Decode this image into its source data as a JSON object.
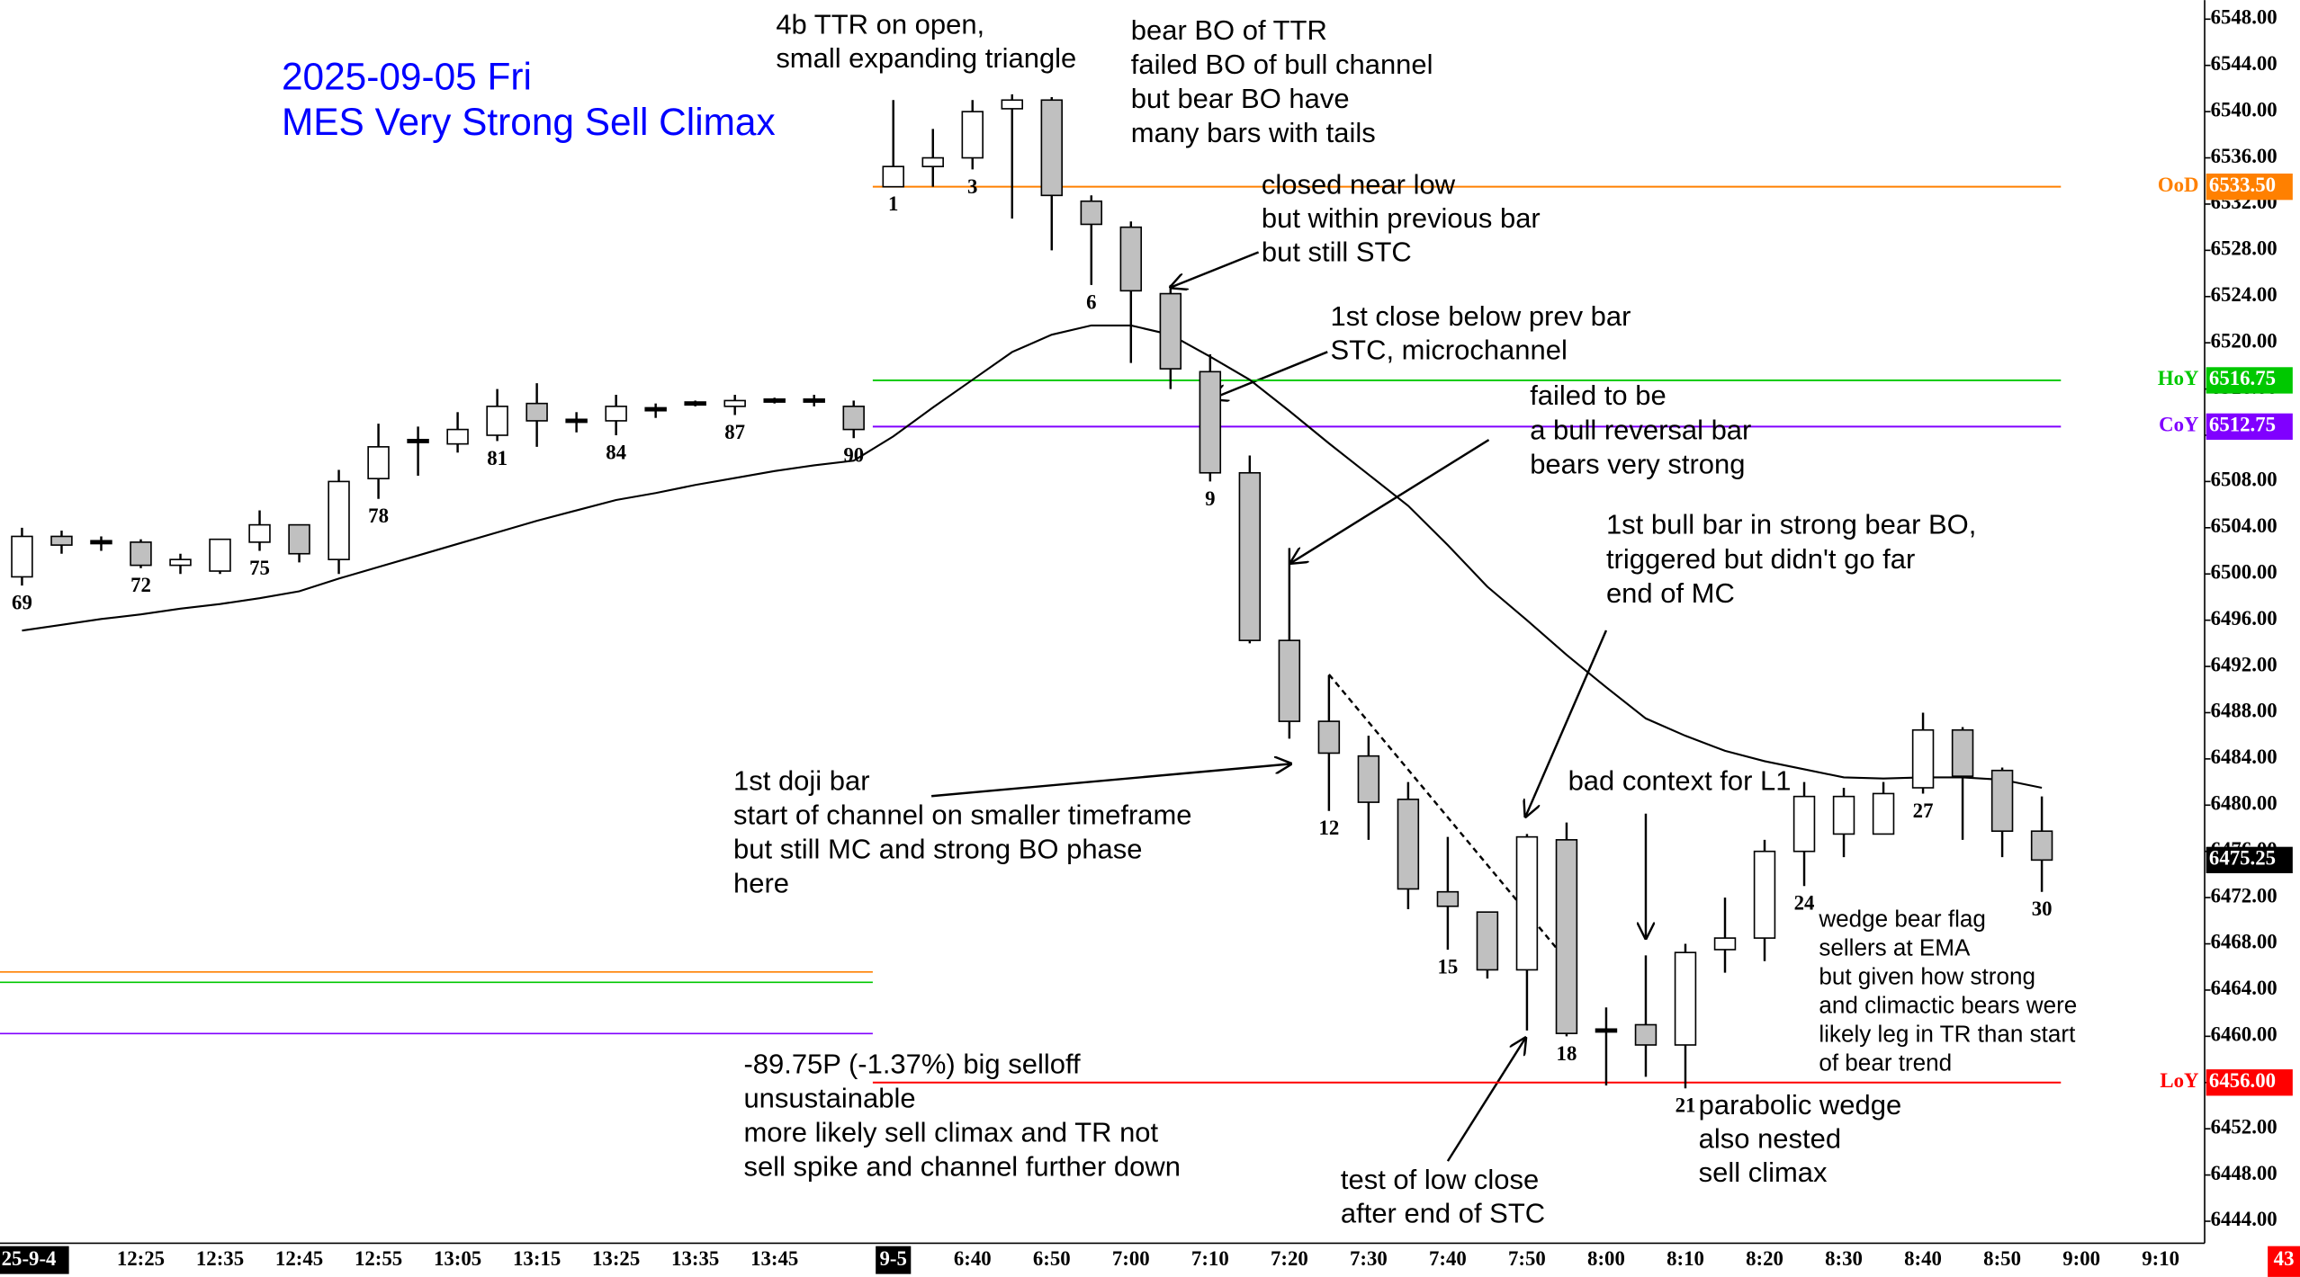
{
  "chart_data": {
    "type": "candlestick",
    "title": [
      "2025-09-05 Fri",
      "MES Very Strong Sell Climax"
    ],
    "categories": [
      "69",
      null,
      null,
      "72",
      null,
      null,
      "75",
      null,
      null,
      "78",
      null,
      null,
      "81",
      null,
      null,
      "84",
      null,
      null,
      "87",
      null,
      null,
      "90",
      "1",
      null,
      "3",
      null,
      null,
      "6",
      null,
      null,
      "9",
      null,
      null,
      "12",
      null,
      null,
      "15",
      null,
      null,
      "18",
      null,
      null,
      "21",
      null,
      null,
      "24",
      null,
      null,
      "27",
      null,
      null,
      "30",
      null,
      null,
      null
    ],
    "time_labels": [
      "25-9-4",
      null,
      null,
      "12:25",
      null,
      "12:35",
      null,
      "12:45",
      null,
      "12:55",
      null,
      "13:05",
      null,
      "13:15",
      null,
      "13:25",
      null,
      "13:35",
      null,
      "13:45",
      null,
      null,
      "9-5",
      null,
      "6:40",
      null,
      "6:50",
      null,
      "7:00",
      null,
      "7:10",
      null,
      "7:20",
      null,
      "7:30",
      null,
      "7:40",
      null,
      "7:50",
      null,
      "8:00",
      null,
      "8:10",
      null,
      "8:20",
      null,
      "8:30",
      null,
      "8:40",
      null,
      "8:50",
      null,
      "9:00",
      null,
      "9:10"
    ],
    "open": [
      6499.75,
      6503.25,
      6502.75,
      6502.75,
      6500.75,
      6500.25,
      6502.75,
      6504.25,
      6501.25,
      6508.25,
      6511.5,
      6511.25,
      6512,
      6514.75,
      6513.25,
      6513.25,
      6514.25,
      6514.75,
      6514.5,
      6515,
      6515,
      6514.5,
      6533.5,
      6535.25,
      6536,
      6540.25,
      6541,
      6532.25,
      6530,
      6524.25,
      6517.5,
      6508.75,
      6494.25,
      6487.25,
      6484.25,
      6480.5,
      6472.5,
      6470.75,
      6465.75,
      6477,
      6460.5,
      6461,
      6459.25,
      6467.5,
      6468.5,
      6476,
      6477.5,
      6477.5,
      6481.5,
      6486.5,
      6483,
      6477.75,
      null,
      null,
      null
    ],
    "high": [
      6504,
      6503.75,
      6503.25,
      6503,
      6501.75,
      6503,
      6505.5,
      6504.25,
      6509,
      6513,
      6512.75,
      6514,
      6516,
      6516.5,
      6514,
      6515.5,
      6514.75,
      6515,
      6515.5,
      6515.25,
      6515.5,
      6515,
      6541,
      6538.5,
      6541,
      6541.5,
      6541.25,
      6532.75,
      6530.5,
      6525,
      6519,
      6510.25,
      6502.25,
      6491.25,
      6486,
      6482,
      6477.25,
      6470.75,
      6477.5,
      6478.5,
      6462.5,
      6467,
      6468,
      6472,
      6477,
      6482,
      6481.5,
      6482,
      6488,
      6486.75,
      6483.25,
      6480.75,
      null,
      null,
      null
    ],
    "low": [
      6499,
      6501.75,
      6502,
      6500.5,
      6500,
      6500,
      6502,
      6501,
      6500,
      6506.5,
      6508.5,
      6510.5,
      6511.5,
      6511,
      6512.25,
      6512,
      6513.5,
      6514.5,
      6513.75,
      6514.75,
      6514.5,
      6511.75,
      6533.5,
      6533.5,
      6535,
      6530.75,
      6528,
      6525,
      6518.25,
      6516,
      6508,
      6494,
      6485.75,
      6479.5,
      6477,
      6471,
      6467.5,
      6465,
      6460.5,
      6460,
      6455.75,
      6456.5,
      6455.5,
      6465.5,
      6466.5,
      6473,
      6475.5,
      6477.5,
      6481,
      6477,
      6475.5,
      6472.5,
      null,
      null,
      null
    ],
    "close": [
      6503.25,
      6502.5,
      6502.75,
      6500.75,
      6501.25,
      6503,
      6504.25,
      6501.75,
      6508,
      6511,
      6511.5,
      6512.5,
      6514.5,
      6513.25,
      6513.25,
      6514.5,
      6514.25,
      6514.75,
      6515,
      6515,
      6515,
      6512.5,
      6535.25,
      6536,
      6540,
      6541,
      6532.75,
      6530.25,
      6524.5,
      6517.75,
      6508.75,
      6494.25,
      6487.25,
      6484.5,
      6480.25,
      6472.75,
      6471.25,
      6465.75,
      6477.25,
      6460.25,
      6460.5,
      6459.25,
      6467.25,
      6468.5,
      6476,
      6480.75,
      6480.75,
      6481,
      6486.5,
      6482.5,
      6477.75,
      6475.25,
      null,
      null,
      null
    ],
    "ema": [
      6495.1,
      6495.6,
      6496.1,
      6496.5,
      6497.0,
      6497.4,
      6497.9,
      6498.5,
      6499.6,
      6500.6,
      6501.6,
      6502.6,
      6503.6,
      6504.6,
      6505.5,
      6506.4,
      6507.0,
      6507.7,
      6508.3,
      6508.9,
      6509.4,
      6509.8,
      6511.9,
      6514.4,
      6516.8,
      6519.2,
      6520.7,
      6521.5,
      6521.5,
      6520.7,
      6518.8,
      6516.8,
      6514.1,
      6511.3,
      6508.6,
      6505.9,
      6502.5,
      6498.9,
      6496.0,
      6493.0,
      6490.2,
      6487.5,
      6486.0,
      6484.7,
      6483.8,
      6483.1,
      6482.4,
      6482.3,
      6482.4,
      6482.4,
      6482.2,
      6481.5,
      null,
      null,
      null
    ],
    "bull_color": "#ffffff",
    "bear_color": "#c0c0c0",
    "ema_color": "#000000",
    "ylim": [
      6442.1,
      6549.65
    ],
    "yticks": [
      {
        "value": 6444,
        "label": "6444.00"
      },
      {
        "value": 6448,
        "label": "6448.00"
      },
      {
        "value": 6452,
        "label": "6452.00"
      },
      {
        "value": 6456,
        "label": "6456.00"
      },
      {
        "value": 6460,
        "label": "6460.00"
      },
      {
        "value": 6464,
        "label": "6464.00"
      },
      {
        "value": 6468,
        "label": "6468.00"
      },
      {
        "value": 6472,
        "label": "6472.00"
      },
      {
        "value": 6476,
        "label": "6476.00"
      },
      {
        "value": 6480,
        "label": "6480.00"
      },
      {
        "value": 6484,
        "label": "6484.00"
      },
      {
        "value": 6488,
        "label": "6488.00"
      },
      {
        "value": 6492,
        "label": "6492.00"
      },
      {
        "value": 6496,
        "label": "6496.00"
      },
      {
        "value": 6500,
        "label": "6500.00"
      },
      {
        "value": 6504,
        "label": "6504.00"
      },
      {
        "value": 6508,
        "label": "6508.00"
      },
      {
        "value": 6512,
        "label": "6512.00"
      },
      {
        "value": 6516,
        "label": "6516.00"
      },
      {
        "value": 6520,
        "label": "6520.00"
      },
      {
        "value": 6524,
        "label": "6524.00"
      },
      {
        "value": 6528,
        "label": "6528.00"
      },
      {
        "value": 6532,
        "label": "6532.00"
      },
      {
        "value": 6536,
        "label": "6536.00"
      },
      {
        "value": 6540,
        "label": "6540.00"
      },
      {
        "value": 6544,
        "label": "6544.00"
      },
      {
        "value": 6548,
        "label": "6548.00"
      }
    ],
    "levels": [
      {
        "name": "OoD",
        "value": 6533.5,
        "value_label": "6533.50",
        "color": "#ff8000"
      },
      {
        "name": "HoY",
        "value": 6516.75,
        "value_label": "6516.75",
        "color": "#00c800"
      },
      {
        "name": "CoY",
        "value": 6512.75,
        "value_label": "6512.75",
        "color": "#8000ff"
      },
      {
        "name": "LoY",
        "value": 6456,
        "value_label": "6456.00",
        "color": "#ff0000"
      }
    ],
    "last_price": {
      "value": 6475.25,
      "label": "6475.25"
    },
    "corner_label": "43",
    "annotations": [
      {
        "lines": [
          "4b TTR on open,",
          "small expanding triangle"
        ]
      },
      {
        "lines": [
          "bear BO of TTR",
          "failed BO of bull channel",
          "but bear BO have",
          "many bars with tails"
        ]
      },
      {
        "lines": [
          "closed near low",
          "but within previous bar",
          "but still STC"
        ]
      },
      {
        "lines": [
          "1st close below prev bar",
          "STC, microchannel"
        ]
      },
      {
        "lines": [
          "failed to be",
          "a bull reversal bar",
          "bears very strong"
        ]
      },
      {
        "lines": [
          "1st bull bar in strong bear BO,",
          "triggered but didn't go far",
          "end of MC"
        ]
      },
      {
        "lines": [
          "1st doji bar",
          "start of channel on smaller timeframe",
          "but still MC and strong BO phase",
          "here"
        ]
      },
      {
        "lines": [
          "bad context for L1"
        ]
      },
      {
        "lines": [
          "wedge bear flag",
          "sellers at EMA",
          "but given how strong",
          "and climactic bears were",
          "likely leg in TR than start",
          "of bear trend"
        ]
      },
      {
        "lines": [
          "-89.75P (-1.37%) big selloff",
          "unsustainable",
          "more likely sell climax and TR not",
          "sell spike and channel further down"
        ]
      },
      {
        "lines": [
          "parabolic wedge",
          "also nested",
          "sell climax"
        ]
      },
      {
        "lines": [
          "test of low close",
          "after end of STC"
        ]
      }
    ]
  }
}
